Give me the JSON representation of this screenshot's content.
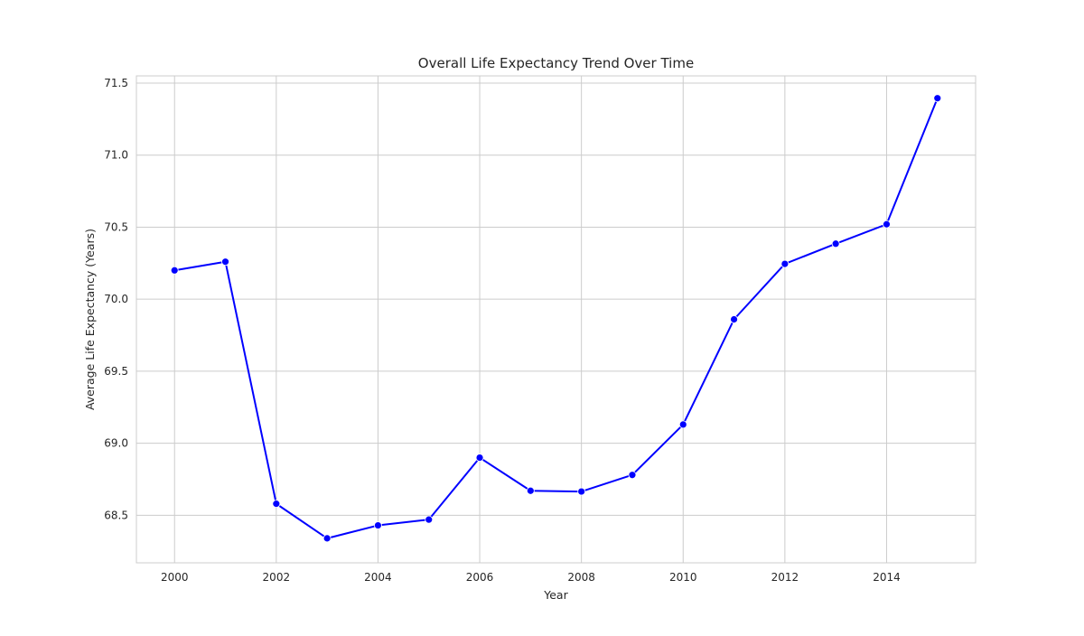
{
  "colors": {
    "line": "#0000ff",
    "marker": "#0000ff",
    "grid": "#cccccc",
    "background": "#ffffff",
    "text": "#262626"
  },
  "chart_data": {
    "type": "line",
    "title": "Overall Life Expectancy Trend Over Time",
    "xlabel": "Year",
    "ylabel": "Average Life Expectancy (Years)",
    "x": [
      2000,
      2001,
      2002,
      2003,
      2004,
      2005,
      2006,
      2007,
      2008,
      2009,
      2010,
      2011,
      2012,
      2013,
      2014,
      2015
    ],
    "series": [
      {
        "values": [
          70.2,
          70.26,
          68.58,
          68.34,
          68.43,
          68.47,
          68.9,
          68.67,
          68.665,
          68.78,
          69.13,
          69.86,
          70.245,
          70.385,
          70.52,
          71.395
        ],
        "marker": "circle"
      }
    ],
    "xlim": [
      1999.25,
      2015.75
    ],
    "ylim": [
      68.17,
      71.55
    ],
    "xticks": [
      2000,
      2002,
      2004,
      2006,
      2008,
      2010,
      2012,
      2014
    ],
    "xtick_labels": [
      "2000",
      "2002",
      "2004",
      "2006",
      "2008",
      "2010",
      "2012",
      "2014"
    ],
    "yticks": [
      68.5,
      69.0,
      69.5,
      70.0,
      70.5,
      71.0,
      71.5
    ],
    "ytick_labels": [
      "68.5",
      "69.0",
      "69.5",
      "70.0",
      "70.5",
      "71.0",
      "71.5"
    ],
    "grid": true,
    "legend": false
  }
}
